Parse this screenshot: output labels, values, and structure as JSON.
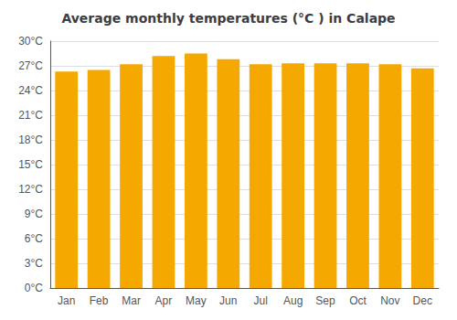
{
  "chart_data": {
    "type": "bar",
    "title": "Average monthly temperatures (°C ) in Calape",
    "categories": [
      "Jan",
      "Feb",
      "Mar",
      "Apr",
      "May",
      "Jun",
      "Jul",
      "Aug",
      "Sep",
      "Oct",
      "Nov",
      "Dec"
    ],
    "values": [
      26.3,
      26.5,
      27.2,
      28.2,
      28.5,
      27.8,
      27.2,
      27.3,
      27.3,
      27.3,
      27.2,
      26.7
    ],
    "color": "#F5A800",
    "ylim": [
      0,
      30
    ],
    "yticks": [
      {
        "value": 0,
        "label": "0°C"
      },
      {
        "value": 3,
        "label": "3°C"
      },
      {
        "value": 6,
        "label": "6°C"
      },
      {
        "value": 9,
        "label": "9°C"
      },
      {
        "value": 12,
        "label": "12°C"
      },
      {
        "value": 15,
        "label": "15°C"
      },
      {
        "value": 18,
        "label": "18°C"
      },
      {
        "value": 21,
        "label": "21°C"
      },
      {
        "value": 24,
        "label": "24°C"
      },
      {
        "value": 27,
        "label": "27°C"
      },
      {
        "value": 30,
        "label": "30°C"
      }
    ],
    "grid": true
  }
}
